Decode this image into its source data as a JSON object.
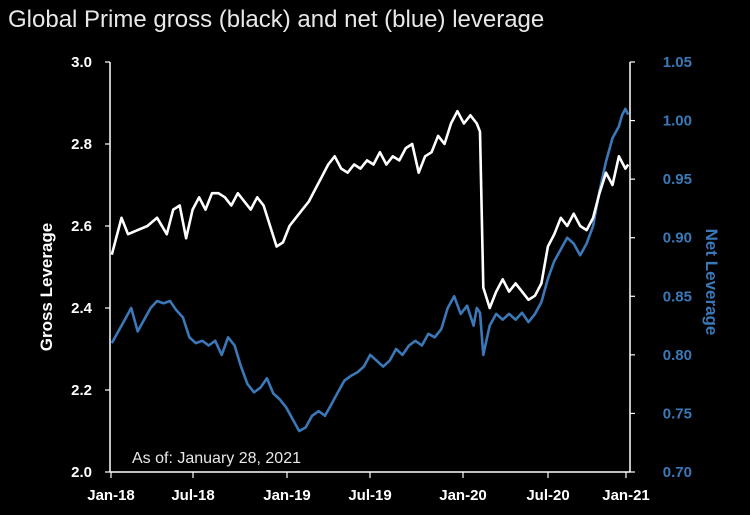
{
  "chart_data": {
    "type": "line",
    "title": "Global Prime gross (black) and net (blue) leverage",
    "annotation": "As of: January 28, 2021",
    "x_tick_labels": [
      "Jan-18",
      "Jul-18",
      "Jan-19",
      "Jul-19",
      "Jan-20",
      "Jul-20",
      "Jan-21"
    ],
    "x_range": [
      "2018-01",
      "2021-02"
    ],
    "y_left": {
      "label": "Gross Leverage",
      "ylim": [
        2.0,
        3.0
      ],
      "ticks": [
        "2.0",
        "2.2",
        "2.4",
        "2.6",
        "2.8",
        "3.0"
      ]
    },
    "y_right": {
      "label": "Net Leverage",
      "ylim": [
        0.7,
        1.05
      ],
      "ticks": [
        "0.70",
        "0.75",
        "0.80",
        "0.85",
        "0.90",
        "0.95",
        "1.00",
        "1.05"
      ]
    },
    "grid": false,
    "series": [
      {
        "name": "gross",
        "axis": "left",
        "color": "#ffffff",
        "points": [
          [
            "2018-01-05",
            2.53
          ],
          [
            "2018-01-26",
            2.62
          ],
          [
            "2018-02-09",
            2.58
          ],
          [
            "2018-03-02",
            2.59
          ],
          [
            "2018-03-23",
            2.6
          ],
          [
            "2018-04-13",
            2.62
          ],
          [
            "2018-05-04",
            2.58
          ],
          [
            "2018-05-18",
            2.64
          ],
          [
            "2018-06-01",
            2.65
          ],
          [
            "2018-06-15",
            2.57
          ],
          [
            "2018-06-29",
            2.64
          ],
          [
            "2018-07-13",
            2.67
          ],
          [
            "2018-07-27",
            2.64
          ],
          [
            "2018-08-10",
            2.68
          ],
          [
            "2018-08-24",
            2.68
          ],
          [
            "2018-09-07",
            2.67
          ],
          [
            "2018-09-21",
            2.65
          ],
          [
            "2018-10-05",
            2.68
          ],
          [
            "2018-10-19",
            2.66
          ],
          [
            "2018-11-02",
            2.64
          ],
          [
            "2018-11-16",
            2.67
          ],
          [
            "2018-11-30",
            2.65
          ],
          [
            "2018-12-14",
            2.6
          ],
          [
            "2018-12-28",
            2.55
          ],
          [
            "2019-01-11",
            2.56
          ],
          [
            "2019-01-25",
            2.6
          ],
          [
            "2019-02-08",
            2.62
          ],
          [
            "2019-02-22",
            2.64
          ],
          [
            "2019-03-08",
            2.66
          ],
          [
            "2019-03-22",
            2.69
          ],
          [
            "2019-04-05",
            2.72
          ],
          [
            "2019-04-19",
            2.75
          ],
          [
            "2019-05-03",
            2.77
          ],
          [
            "2019-05-17",
            2.74
          ],
          [
            "2019-05-31",
            2.73
          ],
          [
            "2019-06-14",
            2.75
          ],
          [
            "2019-06-28",
            2.74
          ],
          [
            "2019-07-12",
            2.76
          ],
          [
            "2019-07-26",
            2.75
          ],
          [
            "2019-08-09",
            2.78
          ],
          [
            "2019-08-23",
            2.75
          ],
          [
            "2019-09-06",
            2.77
          ],
          [
            "2019-09-20",
            2.76
          ],
          [
            "2019-10-04",
            2.79
          ],
          [
            "2019-10-18",
            2.8
          ],
          [
            "2019-11-01",
            2.73
          ],
          [
            "2019-11-15",
            2.77
          ],
          [
            "2019-11-29",
            2.78
          ],
          [
            "2019-12-13",
            2.82
          ],
          [
            "2019-12-27",
            2.8
          ],
          [
            "2020-01-10",
            2.85
          ],
          [
            "2020-01-24",
            2.88
          ],
          [
            "2020-02-07",
            2.85
          ],
          [
            "2020-02-21",
            2.87
          ],
          [
            "2020-03-06",
            2.85
          ],
          [
            "2020-03-13",
            2.83
          ],
          [
            "2020-03-20",
            2.45
          ],
          [
            "2020-04-03",
            2.4
          ],
          [
            "2020-04-17",
            2.44
          ],
          [
            "2020-05-01",
            2.47
          ],
          [
            "2020-05-15",
            2.44
          ],
          [
            "2020-05-29",
            2.46
          ],
          [
            "2020-06-12",
            2.44
          ],
          [
            "2020-06-26",
            2.42
          ],
          [
            "2020-07-10",
            2.43
          ],
          [
            "2020-07-24",
            2.46
          ],
          [
            "2020-08-07",
            2.55
          ],
          [
            "2020-08-21",
            2.58
          ],
          [
            "2020-09-04",
            2.62
          ],
          [
            "2020-09-18",
            2.6
          ],
          [
            "2020-10-02",
            2.63
          ],
          [
            "2020-10-16",
            2.6
          ],
          [
            "2020-10-30",
            2.59
          ],
          [
            "2020-11-13",
            2.62
          ],
          [
            "2020-11-27",
            2.68
          ],
          [
            "2020-12-11",
            2.73
          ],
          [
            "2020-12-25",
            2.7
          ],
          [
            "2021-01-08",
            2.77
          ],
          [
            "2021-01-22",
            2.74
          ],
          [
            "2021-01-28",
            2.75
          ]
        ]
      },
      {
        "name": "net",
        "axis": "right",
        "color": "#3b78b8",
        "points": [
          [
            "2018-01-05",
            0.81
          ],
          [
            "2018-01-19",
            0.82
          ],
          [
            "2018-02-02",
            0.83
          ],
          [
            "2018-02-16",
            0.84
          ],
          [
            "2018-03-02",
            0.82
          ],
          [
            "2018-03-16",
            0.83
          ],
          [
            "2018-03-30",
            0.84
          ],
          [
            "2018-04-13",
            0.846
          ],
          [
            "2018-04-27",
            0.844
          ],
          [
            "2018-05-11",
            0.846
          ],
          [
            "2018-05-25",
            0.838
          ],
          [
            "2018-06-08",
            0.832
          ],
          [
            "2018-06-22",
            0.815
          ],
          [
            "2018-07-06",
            0.81
          ],
          [
            "2018-07-20",
            0.812
          ],
          [
            "2018-08-03",
            0.808
          ],
          [
            "2018-08-17",
            0.812
          ],
          [
            "2018-08-31",
            0.8
          ],
          [
            "2018-09-14",
            0.815
          ],
          [
            "2018-09-28",
            0.808
          ],
          [
            "2018-10-12",
            0.79
          ],
          [
            "2018-10-26",
            0.775
          ],
          [
            "2018-11-09",
            0.768
          ],
          [
            "2018-11-23",
            0.772
          ],
          [
            "2018-12-07",
            0.78
          ],
          [
            "2018-12-21",
            0.767
          ],
          [
            "2019-01-04",
            0.762
          ],
          [
            "2019-01-18",
            0.755
          ],
          [
            "2019-02-01",
            0.745
          ],
          [
            "2019-02-15",
            0.735
          ],
          [
            "2019-03-01",
            0.738
          ],
          [
            "2019-03-15",
            0.748
          ],
          [
            "2019-03-29",
            0.752
          ],
          [
            "2019-04-12",
            0.748
          ],
          [
            "2019-04-26",
            0.758
          ],
          [
            "2019-05-10",
            0.768
          ],
          [
            "2019-05-24",
            0.778
          ],
          [
            "2019-06-07",
            0.782
          ],
          [
            "2019-06-21",
            0.785
          ],
          [
            "2019-07-05",
            0.79
          ],
          [
            "2019-07-19",
            0.8
          ],
          [
            "2019-08-02",
            0.795
          ],
          [
            "2019-08-16",
            0.79
          ],
          [
            "2019-08-30",
            0.795
          ],
          [
            "2019-09-13",
            0.805
          ],
          [
            "2019-09-27",
            0.8
          ],
          [
            "2019-10-11",
            0.808
          ],
          [
            "2019-10-25",
            0.812
          ],
          [
            "2019-11-08",
            0.808
          ],
          [
            "2019-11-22",
            0.818
          ],
          [
            "2019-12-06",
            0.815
          ],
          [
            "2019-12-20",
            0.822
          ],
          [
            "2020-01-03",
            0.84
          ],
          [
            "2020-01-17",
            0.85
          ],
          [
            "2020-01-31",
            0.835
          ],
          [
            "2020-02-14",
            0.842
          ],
          [
            "2020-02-28",
            0.825
          ],
          [
            "2020-03-06",
            0.84
          ],
          [
            "2020-03-13",
            0.836
          ],
          [
            "2020-03-20",
            0.8
          ],
          [
            "2020-04-03",
            0.825
          ],
          [
            "2020-04-17",
            0.835
          ],
          [
            "2020-05-01",
            0.83
          ],
          [
            "2020-05-15",
            0.835
          ],
          [
            "2020-05-29",
            0.83
          ],
          [
            "2020-06-12",
            0.836
          ],
          [
            "2020-06-26",
            0.828
          ],
          [
            "2020-07-10",
            0.835
          ],
          [
            "2020-07-24",
            0.845
          ],
          [
            "2020-08-07",
            0.865
          ],
          [
            "2020-08-21",
            0.88
          ],
          [
            "2020-09-04",
            0.89
          ],
          [
            "2020-09-18",
            0.9
          ],
          [
            "2020-10-02",
            0.895
          ],
          [
            "2020-10-16",
            0.885
          ],
          [
            "2020-10-30",
            0.895
          ],
          [
            "2020-11-13",
            0.91
          ],
          [
            "2020-11-27",
            0.94
          ],
          [
            "2020-12-11",
            0.965
          ],
          [
            "2020-12-25",
            0.985
          ],
          [
            "2021-01-08",
            0.995
          ],
          [
            "2021-01-15",
            1.005
          ],
          [
            "2021-01-22",
            1.01
          ],
          [
            "2021-01-28",
            1.005
          ]
        ]
      }
    ]
  }
}
